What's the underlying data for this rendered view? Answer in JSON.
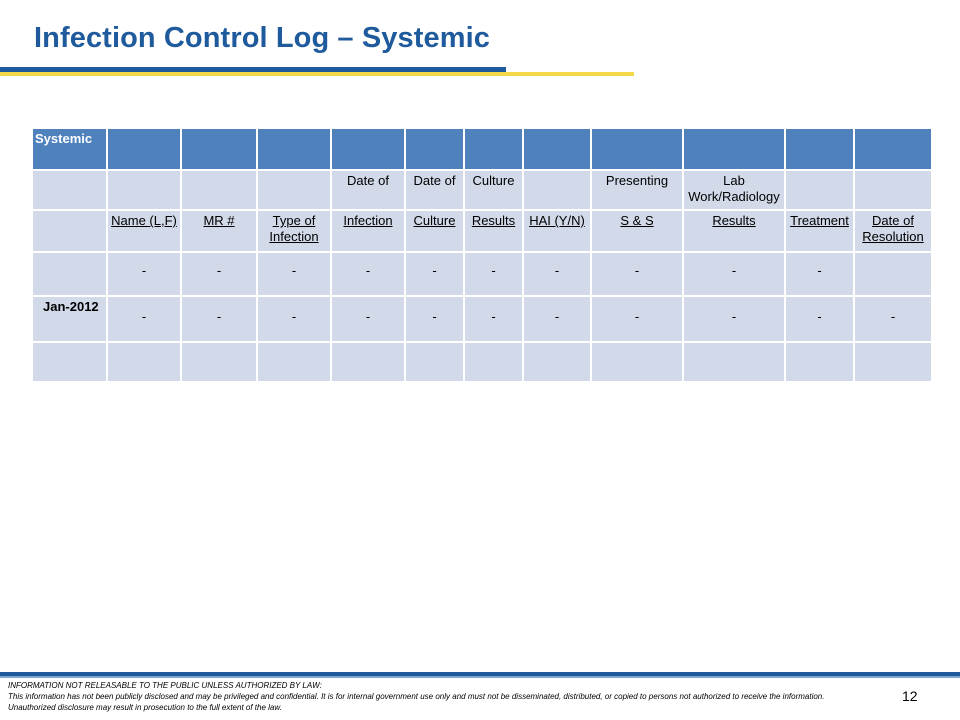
{
  "slide": {
    "title": "Infection Control Log – Systemic",
    "page_number": "12"
  },
  "table": {
    "header_row": [
      "Systemic",
      "",
      "",
      "",
      "",
      "",
      "",
      "",
      "",
      "",
      "",
      ""
    ],
    "row2": [
      "",
      "",
      "",
      "",
      "Date of",
      "Date of",
      "Culture",
      "",
      "Presenting",
      "Lab Work/Radiology",
      "",
      ""
    ],
    "row3": [
      "",
      "Name (L,F)",
      "MR #",
      "Type of Infection",
      "Infection",
      "Culture",
      "Results",
      "HAI (Y/N)",
      "S & S",
      "Results",
      "Treatment",
      "Date of Resolution"
    ],
    "row4": [
      "",
      "-",
      "-",
      "-",
      "-",
      "-",
      "-",
      "-",
      "-",
      "-",
      "-",
      ""
    ],
    "row5": [
      "Jan-2012",
      "-",
      "-",
      "-",
      "-",
      "-",
      "-",
      "-",
      "-",
      "-",
      "-",
      "-"
    ],
    "row6": [
      "",
      "",
      "",
      "",
      "",
      "",
      "",
      "",
      "",
      "",
      "",
      ""
    ]
  },
  "footer": {
    "line1": "INFORMATION NOT RELEASABLE TO THE PUBLIC UNLESS AUTHORIZED BY LAW:",
    "line2": "This information has not been publicly disclosed and may be privileged and confidential.  It is for internal government use only and must not be disseminated, distributed, or copied to persons not authorized to receive the information.  Unauthorized disclosure may result in prosecution to the full extent of the law."
  },
  "colors": {
    "title": "#1f5a9c",
    "header_fill": "#4f81bd",
    "cell_fill": "#d2d9e8",
    "accent_yellow": "#f5d94a"
  }
}
